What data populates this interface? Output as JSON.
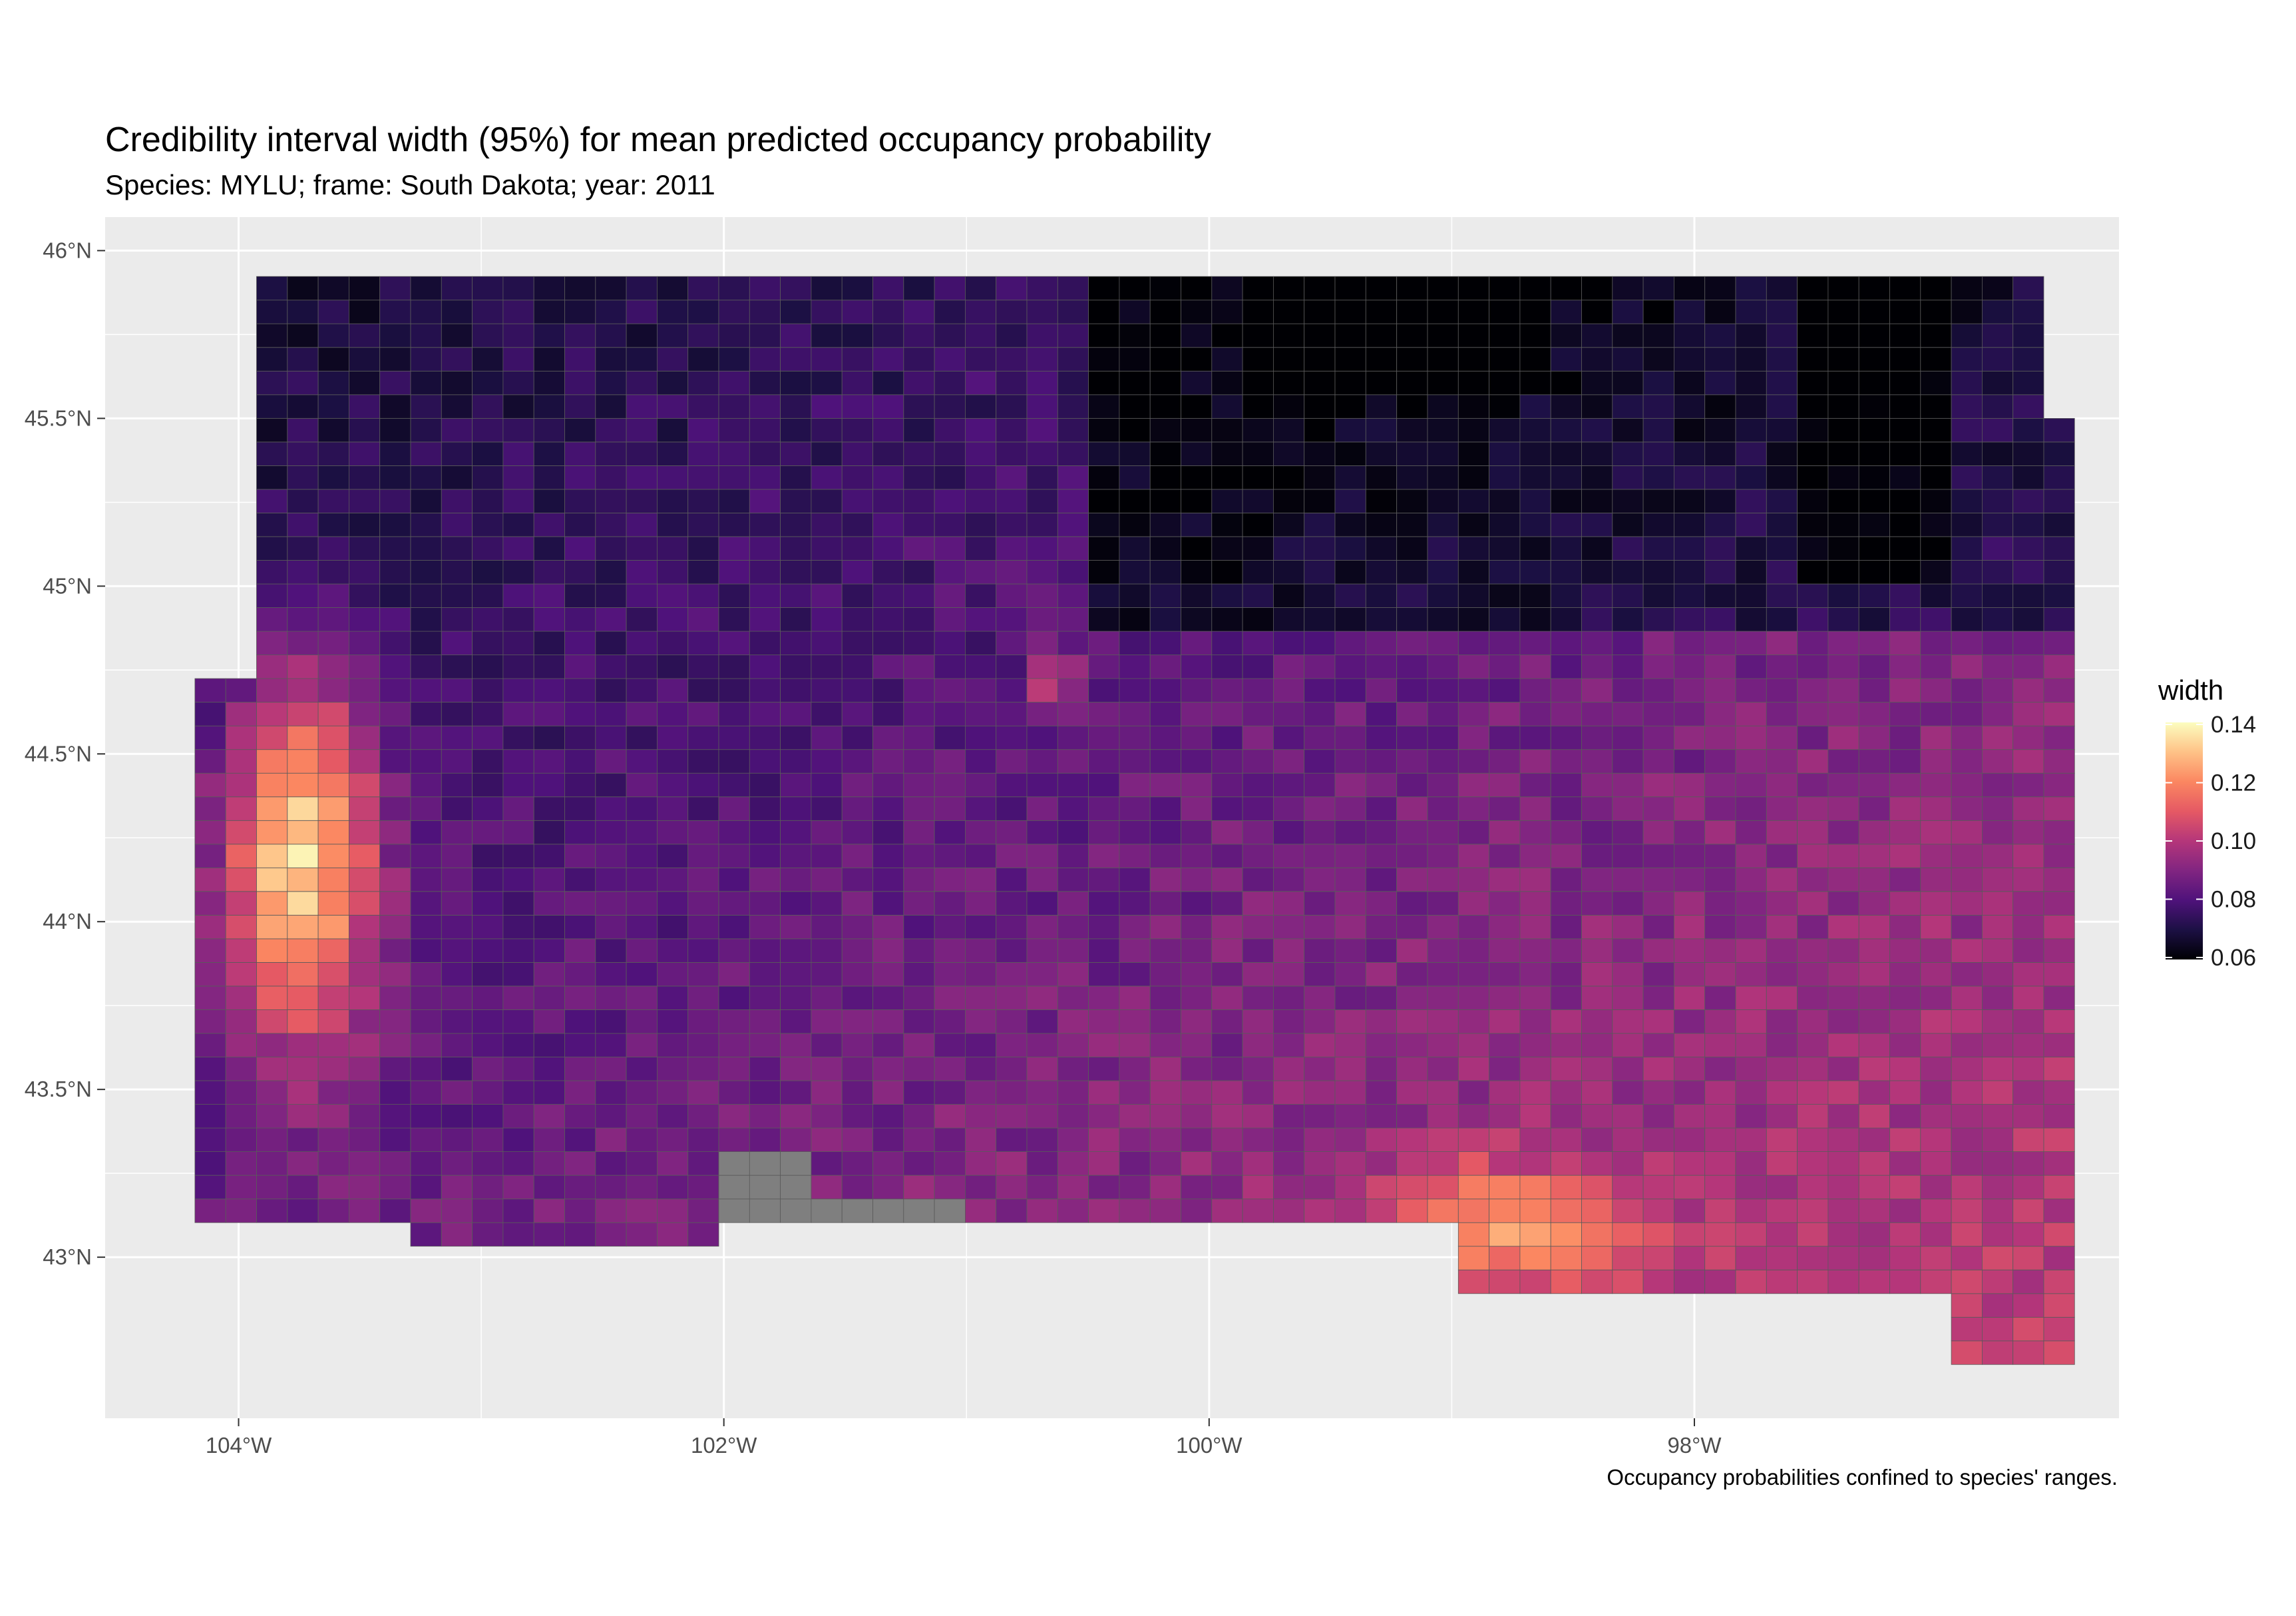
{
  "title": "Credibility interval width (95%) for mean predicted occupancy probability",
  "subtitle": "Species: MYLU; frame: South Dakota; year: 2011",
  "caption": "Occupancy probabilities confined to species' ranges.",
  "map": {
    "lon_range": [
      -104.55,
      -96.25
    ],
    "lat_range": [
      42.52,
      46.1
    ],
    "x_ticks": [
      {
        "value": -104,
        "label": "104°W"
      },
      {
        "value": -102,
        "label": "102°W"
      },
      {
        "value": -100,
        "label": "100°W"
      },
      {
        "value": -98,
        "label": "98°W"
      }
    ],
    "y_ticks": [
      {
        "value": 46,
        "label": "46°N"
      },
      {
        "value": 45.5,
        "label": "45.5°N"
      },
      {
        "value": 45,
        "label": "45°N"
      },
      {
        "value": 44.5,
        "label": "44.5°N"
      },
      {
        "value": 44,
        "label": "44°N"
      },
      {
        "value": 43.5,
        "label": "43.5°N"
      },
      {
        "value": 43,
        "label": "43°N"
      }
    ],
    "panel_background": "#ebebeb",
    "grid_color": "#ffffff",
    "na_color": "#7f7f7f",
    "cell_border": "#5a5a5a"
  },
  "legend": {
    "title": "width",
    "min": 0.06,
    "max": 0.14,
    "labels": [
      "0.14",
      "0.12",
      "0.10",
      "0.08",
      "0.06"
    ],
    "palette": [
      "#000004",
      "#1c1044",
      "#4f127b",
      "#812581",
      "#b5367a",
      "#e55964",
      "#fb8761",
      "#fec287",
      "#fcfdbf"
    ]
  }
}
